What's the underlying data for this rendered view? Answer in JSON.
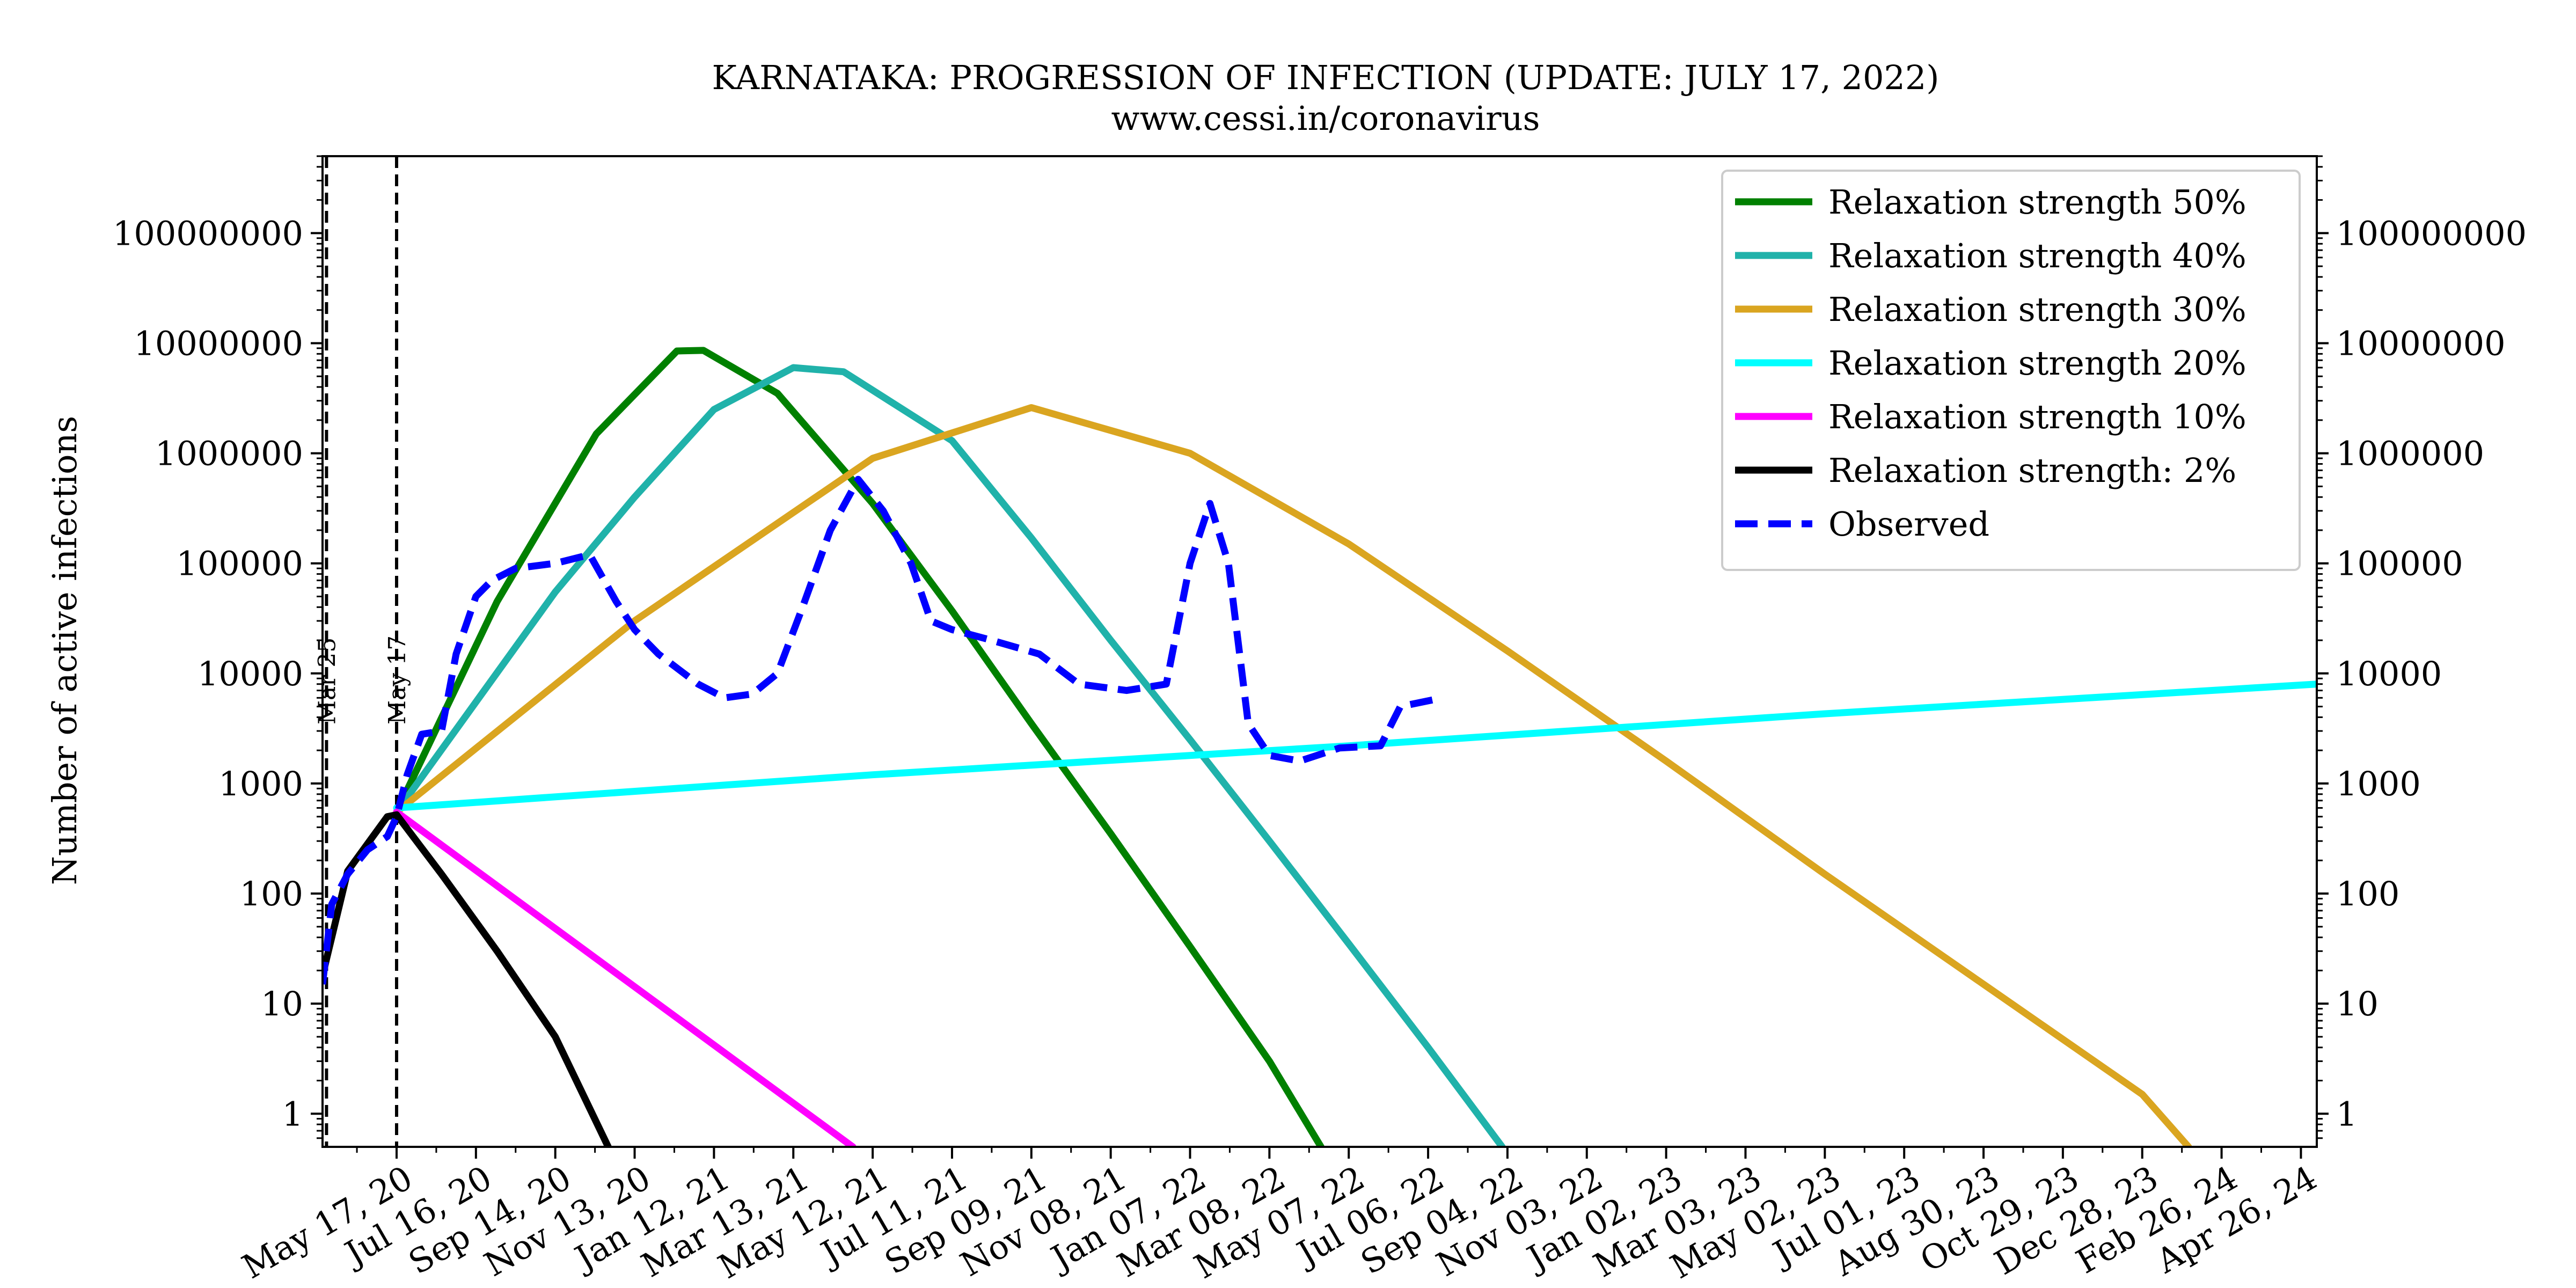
{
  "chart_data": {
    "type": "line",
    "title": "KARNATAKA: PROGRESSION OF INFECTION (UPDATE: JULY 17, 2022)",
    "subtitle": "www.cessi.in/coronavirus",
    "ylabel": "Number of active infections",
    "xlabel": "",
    "y_scale": "log",
    "ylim": [
      0.5,
      500000000
    ],
    "xlim": [
      "2020-03-22",
      "2024-05-08"
    ],
    "grid": false,
    "legend_position": "top-right",
    "y_ticks": [
      {
        "value": 1,
        "label": "1"
      },
      {
        "value": 10,
        "label": "10"
      },
      {
        "value": 100,
        "label": "100"
      },
      {
        "value": 1000,
        "label": "1000"
      },
      {
        "value": 10000,
        "label": "10000"
      },
      {
        "value": 100000,
        "label": "100000"
      },
      {
        "value": 1000000,
        "label": "1000000"
      },
      {
        "value": 10000000,
        "label": "10000000"
      },
      {
        "value": 100000000,
        "label": "100000000"
      }
    ],
    "x_ticks": [
      {
        "date": "2020-05-17",
        "label": "May 17, 20"
      },
      {
        "date": "2020-07-16",
        "label": "Jul 16, 20"
      },
      {
        "date": "2020-09-14",
        "label": "Sep 14, 20"
      },
      {
        "date": "2020-11-13",
        "label": "Nov 13, 20"
      },
      {
        "date": "2021-01-12",
        "label": "Jan 12, 21"
      },
      {
        "date": "2021-03-13",
        "label": "Mar 13, 21"
      },
      {
        "date": "2021-05-12",
        "label": "May 12, 21"
      },
      {
        "date": "2021-07-11",
        "label": "Jul 11, 21"
      },
      {
        "date": "2021-09-09",
        "label": "Sep 09, 21"
      },
      {
        "date": "2021-11-08",
        "label": "Nov 08, 21"
      },
      {
        "date": "2022-01-07",
        "label": "Jan 07, 22"
      },
      {
        "date": "2022-03-08",
        "label": "Mar 08, 22"
      },
      {
        "date": "2022-05-07",
        "label": "May 07, 22"
      },
      {
        "date": "2022-07-06",
        "label": "Jul 06, 22"
      },
      {
        "date": "2022-09-04",
        "label": "Sep 04, 22"
      },
      {
        "date": "2022-11-03",
        "label": "Nov 03, 22"
      },
      {
        "date": "2023-01-02",
        "label": "Jan 02, 23"
      },
      {
        "date": "2023-03-03",
        "label": "Mar 03, 23"
      },
      {
        "date": "2023-05-02",
        "label": "May 02, 23"
      },
      {
        "date": "2023-07-01",
        "label": "Jul 01, 23"
      },
      {
        "date": "2023-08-30",
        "label": "Aug 30, 23"
      },
      {
        "date": "2023-10-29",
        "label": "Oct 29, 23"
      },
      {
        "date": "2023-12-28",
        "label": "Dec 28, 23"
      },
      {
        "date": "2024-02-26",
        "label": "Feb 26, 24"
      },
      {
        "date": "2024-04-26",
        "label": "Apr 26, 24"
      }
    ],
    "vlines": [
      {
        "date": "2020-03-25",
        "label": "Mar 25"
      },
      {
        "date": "2020-05-17",
        "label": "May 17"
      }
    ],
    "series": [
      {
        "name": "Relaxation strength 50%",
        "color": "#008000",
        "style": "solid",
        "points": [
          [
            "2020-05-17",
            550
          ],
          [
            "2020-08-01",
            45000
          ],
          [
            "2020-10-15",
            1500000
          ],
          [
            "2020-12-15",
            8500000
          ],
          [
            "2021-01-04",
            8600000
          ],
          [
            "2021-03-01",
            3500000
          ],
          [
            "2021-05-12",
            350000
          ],
          [
            "2021-07-11",
            37000
          ],
          [
            "2021-09-09",
            3500
          ],
          [
            "2021-11-08",
            350
          ],
          [
            "2022-01-07",
            33
          ],
          [
            "2022-03-08",
            3
          ],
          [
            "2022-04-16",
            0.5
          ]
        ]
      },
      {
        "name": "Relaxation strength 40%",
        "color": "#20b2aa",
        "style": "solid",
        "points": [
          [
            "2020-05-17",
            550
          ],
          [
            "2020-09-14",
            55000
          ],
          [
            "2020-11-13",
            400000
          ],
          [
            "2021-01-12",
            2500000
          ],
          [
            "2021-03-13",
            6000000
          ],
          [
            "2021-04-20",
            5500000
          ],
          [
            "2021-07-11",
            1300000
          ],
          [
            "2021-09-09",
            170000
          ],
          [
            "2021-11-08",
            20000
          ],
          [
            "2022-01-07",
            2500
          ],
          [
            "2022-03-08",
            300
          ],
          [
            "2022-05-07",
            35
          ],
          [
            "2022-07-06",
            4
          ],
          [
            "2022-08-31",
            0.5
          ]
        ]
      },
      {
        "name": "Relaxation strength 30%",
        "color": "#daa520",
        "style": "solid",
        "points": [
          [
            "2020-05-17",
            550
          ],
          [
            "2020-11-13",
            30000
          ],
          [
            "2021-05-12",
            900000
          ],
          [
            "2021-09-09",
            2600000
          ],
          [
            "2022-01-07",
            1000000
          ],
          [
            "2022-05-07",
            150000
          ],
          [
            "2022-09-04",
            16000
          ],
          [
            "2023-01-02",
            1600
          ],
          [
            "2023-05-02",
            150
          ],
          [
            "2023-08-30",
            15
          ],
          [
            "2023-12-28",
            1.5
          ],
          [
            "2024-02-01",
            0.5
          ]
        ]
      },
      {
        "name": "Relaxation strength 20%",
        "color": "#00ffff",
        "style": "solid",
        "points": [
          [
            "2020-05-17",
            600
          ],
          [
            "2021-05-12",
            1200
          ],
          [
            "2022-05-07",
            2200
          ],
          [
            "2023-05-02",
            4300
          ],
          [
            "2024-05-08",
            8000
          ]
        ]
      },
      {
        "name": "Relaxation strength 10%",
        "color": "#ff00ff",
        "style": "solid",
        "points": [
          [
            "2020-05-17",
            550
          ],
          [
            "2021-04-27",
            0.5
          ]
        ]
      },
      {
        "name": "Relaxation strength: 2%",
        "color": "#000000",
        "style": "solid",
        "points": [
          [
            "2020-03-22",
            18
          ],
          [
            "2020-04-10",
            160
          ],
          [
            "2020-05-10",
            500
          ],
          [
            "2020-05-17",
            520
          ],
          [
            "2020-06-20",
            150
          ],
          [
            "2020-08-01",
            30
          ],
          [
            "2020-09-14",
            5
          ],
          [
            "2020-10-24",
            0.5
          ]
        ]
      },
      {
        "name": "Observed",
        "color": "#0000ff",
        "style": "dashed",
        "points": [
          [
            "2020-03-22",
            15
          ],
          [
            "2020-03-29",
            80
          ],
          [
            "2020-04-10",
            150
          ],
          [
            "2020-04-25",
            250
          ],
          [
            "2020-05-10",
            330
          ],
          [
            "2020-05-17",
            500
          ],
          [
            "2020-05-25",
            1200
          ],
          [
            "2020-06-05",
            2800
          ],
          [
            "2020-06-20",
            3000
          ],
          [
            "2020-07-01",
            15000
          ],
          [
            "2020-07-16",
            50000
          ],
          [
            "2020-07-28",
            70000
          ],
          [
            "2020-08-15",
            90000
          ],
          [
            "2020-09-14",
            100000
          ],
          [
            "2020-10-10",
            120000
          ],
          [
            "2020-10-30",
            45000
          ],
          [
            "2020-11-13",
            25000
          ],
          [
            "2020-12-01",
            15000
          ],
          [
            "2020-12-31",
            8000
          ],
          [
            "2021-01-20",
            6000
          ],
          [
            "2021-02-10",
            6500
          ],
          [
            "2021-03-01",
            10000
          ],
          [
            "2021-03-20",
            40000
          ],
          [
            "2021-04-10",
            200000
          ],
          [
            "2021-05-01",
            580000
          ],
          [
            "2021-05-20",
            300000
          ],
          [
            "2021-06-10",
            100000
          ],
          [
            "2021-06-25",
            30000
          ],
          [
            "2021-07-11",
            25000
          ],
          [
            "2021-08-10",
            20000
          ],
          [
            "2021-09-15",
            15000
          ],
          [
            "2021-10-15",
            8000
          ],
          [
            "2021-11-20",
            7000
          ],
          [
            "2021-12-20",
            8000
          ],
          [
            "2022-01-07",
            100000
          ],
          [
            "2022-01-22",
            350000
          ],
          [
            "2022-02-05",
            100000
          ],
          [
            "2022-02-20",
            3500
          ],
          [
            "2022-03-08",
            1800
          ],
          [
            "2022-03-31",
            1600
          ],
          [
            "2022-04-30",
            2100
          ],
          [
            "2022-05-31",
            2200
          ],
          [
            "2022-06-15",
            5000
          ],
          [
            "2022-07-17",
            6000
          ]
        ]
      }
    ]
  }
}
